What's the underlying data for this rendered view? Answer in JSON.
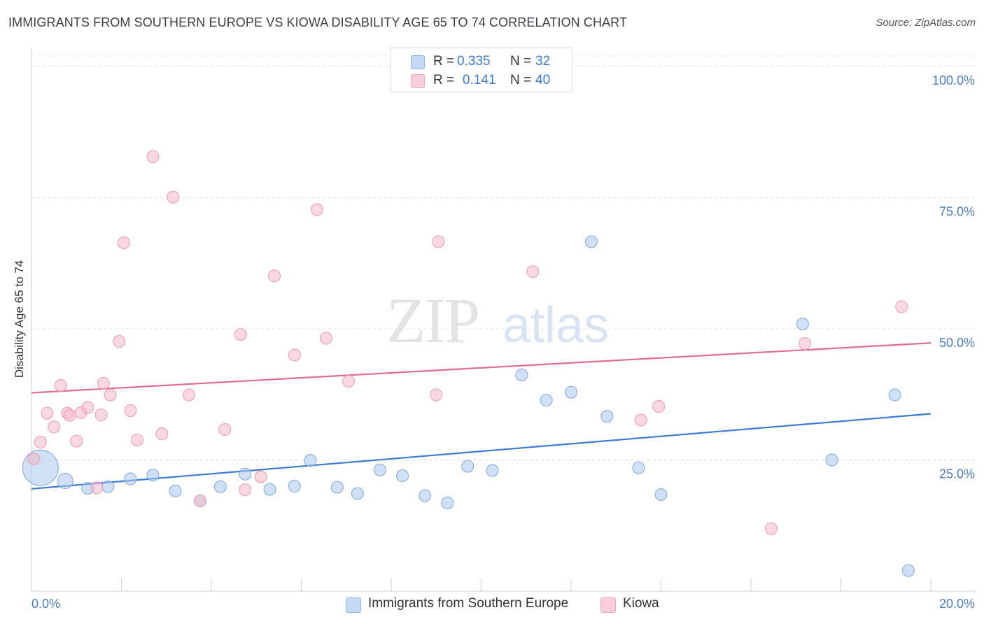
{
  "title": "IMMIGRANTS FROM SOUTHERN EUROPE VS KIOWA DISABILITY AGE 65 TO 74 CORRELATION CHART",
  "source": "Source: ZipAtlas.com",
  "watermark": {
    "zip": "ZIP",
    "atlas": "atlas"
  },
  "legend": {
    "rows": [
      {
        "r_label": "R =",
        "r_value": "0.335",
        "n_label": "N =",
        "n_value": "32",
        "color": "#a9c6ef"
      },
      {
        "r_label": "R =",
        "r_value": "0.141",
        "n_label": "N =",
        "n_value": "40",
        "color": "#f5b8cb"
      }
    ]
  },
  "bottom_legend": [
    {
      "label": "Immigrants from Southern Europe",
      "color": "#a9c6ef"
    },
    {
      "label": "Kiowa",
      "color": "#f5b8cb"
    }
  ],
  "chart_data": {
    "type": "scatter",
    "title": "IMMIGRANTS FROM SOUTHERN EUROPE VS KIOWA DISABILITY AGE 65 TO 74 CORRELATION CHART",
    "xlabel": "",
    "ylabel": "Disability Age 65 to 74",
    "xlim": [
      0,
      20
    ],
    "ylim": [
      0,
      102
    ],
    "x_tick_labels": [
      "0.0%",
      "20.0%"
    ],
    "y_ticks": [
      25,
      50,
      75,
      100
    ],
    "y_tick_labels": [
      "25.0%",
      "50.0%",
      "75.0%",
      "100.0%"
    ],
    "grid": true,
    "legend_placement": "top-center",
    "series": [
      {
        "name": "Immigrants from Southern Europe",
        "color": "#a9c6ef",
        "stroke": "#7ea9e0",
        "line_color": "#3d7bd1",
        "trend": [
          [
            0,
            19.5
          ],
          [
            20,
            33.8
          ]
        ],
        "points": [
          [
            0.2,
            23.5,
            3
          ],
          [
            0.75,
            21.0,
            1.3
          ],
          [
            1.25,
            19.6,
            1
          ],
          [
            1.7,
            19.9,
            1
          ],
          [
            2.2,
            21.4,
            1
          ],
          [
            2.7,
            22.1,
            1
          ],
          [
            3.2,
            19.1,
            1
          ],
          [
            3.75,
            17.2,
            1
          ],
          [
            4.2,
            19.9,
            1
          ],
          [
            4.75,
            22.3,
            1
          ],
          [
            5.3,
            19.4,
            1
          ],
          [
            5.85,
            20.0,
            1
          ],
          [
            6.2,
            24.9,
            1
          ],
          [
            6.8,
            19.8,
            1
          ],
          [
            7.25,
            18.6,
            1
          ],
          [
            7.75,
            23.1,
            1
          ],
          [
            8.25,
            22.0,
            1
          ],
          [
            8.75,
            18.2,
            1
          ],
          [
            9.25,
            16.8,
            1
          ],
          [
            9.7,
            23.8,
            1
          ],
          [
            10.25,
            23.0,
            1
          ],
          [
            10.9,
            41.2,
            1
          ],
          [
            11.45,
            36.4,
            1
          ],
          [
            12.0,
            37.9,
            1
          ],
          [
            12.45,
            66.6,
            1
          ],
          [
            12.8,
            33.3,
            1
          ],
          [
            13.5,
            23.5,
            1
          ],
          [
            14.0,
            18.4,
            1
          ],
          [
            17.15,
            50.9,
            1
          ],
          [
            17.8,
            25.0,
            1
          ],
          [
            19.2,
            37.4,
            1
          ],
          [
            19.5,
            3.9,
            1
          ]
        ]
      },
      {
        "name": "Kiowa",
        "color": "#f5b8cb",
        "stroke": "#ec9ab3",
        "line_color": "#e06b93",
        "trend": [
          [
            0,
            37.8
          ],
          [
            20,
            47.3
          ]
        ],
        "points": [
          [
            0.05,
            25.2,
            1
          ],
          [
            0.2,
            28.4,
            1
          ],
          [
            0.35,
            33.9,
            1
          ],
          [
            0.5,
            31.3,
            1
          ],
          [
            0.65,
            39.2,
            1
          ],
          [
            0.8,
            33.9,
            1
          ],
          [
            0.85,
            33.5,
            1
          ],
          [
            1.0,
            28.6,
            1
          ],
          [
            1.1,
            34.0,
            1
          ],
          [
            1.25,
            35.0,
            1
          ],
          [
            1.45,
            19.7,
            1
          ],
          [
            1.55,
            33.6,
            1
          ],
          [
            1.6,
            39.6,
            1
          ],
          [
            1.75,
            37.4,
            1
          ],
          [
            1.95,
            47.6,
            1
          ],
          [
            2.05,
            66.4,
            1
          ],
          [
            2.2,
            34.4,
            1
          ],
          [
            2.35,
            28.8,
            1
          ],
          [
            2.7,
            82.8,
            1
          ],
          [
            2.9,
            30.0,
            1
          ],
          [
            3.15,
            75.1,
            1
          ],
          [
            3.5,
            37.4,
            1
          ],
          [
            3.75,
            17.2,
            1
          ],
          [
            4.3,
            30.8,
            1
          ],
          [
            4.65,
            48.9,
            1
          ],
          [
            4.75,
            19.3,
            1
          ],
          [
            5.1,
            21.8,
            1
          ],
          [
            5.4,
            60.1,
            1
          ],
          [
            5.85,
            45.0,
            1
          ],
          [
            6.35,
            72.7,
            1
          ],
          [
            6.55,
            48.2,
            1
          ],
          [
            7.05,
            40.0,
            1
          ],
          [
            9.0,
            37.4,
            1
          ],
          [
            9.05,
            66.6,
            1
          ],
          [
            11.15,
            60.9,
            1
          ],
          [
            13.55,
            32.6,
            1
          ],
          [
            13.95,
            35.2,
            1
          ],
          [
            16.45,
            11.9,
            1
          ],
          [
            17.2,
            47.2,
            1
          ],
          [
            19.35,
            54.2,
            1
          ]
        ]
      }
    ]
  }
}
